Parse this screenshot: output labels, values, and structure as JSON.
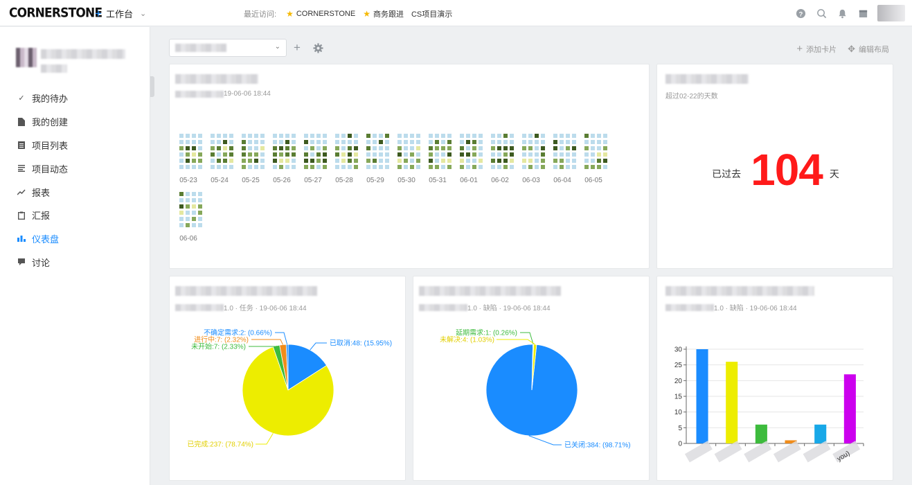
{
  "app": {
    "logo": "CORNERSTONE",
    "workspace_label": "工作台",
    "recent_label": "最近访问:",
    "recent": [
      "CORNERSTONE",
      "商务跟进",
      "CS项目演示"
    ]
  },
  "topbar_icons": [
    "help-icon",
    "search-icon",
    "bell-icon",
    "calendar-icon"
  ],
  "sidebar": {
    "items": [
      {
        "label": "我的待办",
        "icon": "check-double-icon",
        "active": false
      },
      {
        "label": "我的创建",
        "icon": "document-icon",
        "active": false
      },
      {
        "label": "项目列表",
        "icon": "list-icon",
        "active": false
      },
      {
        "label": "项目动态",
        "icon": "feed-icon",
        "active": false
      },
      {
        "label": "报表",
        "icon": "trend-icon",
        "active": false
      },
      {
        "label": "汇报",
        "icon": "clipboard-icon",
        "active": false
      },
      {
        "label": "仪表盘",
        "icon": "bars-icon",
        "active": true
      },
      {
        "label": "讨论",
        "icon": "chat-icon",
        "active": false
      }
    ]
  },
  "toolbar": {
    "add_card": "添加卡片",
    "edit_layout": "编辑布局"
  },
  "cards": {
    "heatmap": {
      "subtitle": "19-06-06 18:44"
    },
    "counter": {
      "subtitle": "超过02-22的天数",
      "prefix": "已过去",
      "value": "104",
      "suffix": "天"
    },
    "task_pie": {
      "subtitle": "1.0 · 任务 · 19-06-06 18:44"
    },
    "bug_pie": {
      "subtitle": "1.0 · 缺陷 · 19-06-06 18:44"
    },
    "bug_bar": {
      "subtitle": "1.0 · 缺陷 · 19-06-06 18:44"
    }
  },
  "chart_data": [
    {
      "type": "heatmap",
      "categories": [
        "05-23",
        "05-24",
        "05-25",
        "05-26",
        "05-27",
        "05-28",
        "05-29",
        "05-30",
        "05-31",
        "06-01",
        "06-02",
        "06-03",
        "06-04",
        "06-05",
        "06-06"
      ],
      "levels": [
        "000000000000000000000000000000000000",
        "000000000000000000000000000000000000",
        "000000000000000000000000000000000000",
        "000000000000000000000000000000000000",
        "000000000000000000000000000000000000",
        "000000000000000000000000000000000000",
        "000000000000000000000000000000000000",
        "000000000000000000000000000000000000",
        "000000000000000000000000000000000000",
        "000000000000000000000000000000000000",
        "000000000000000000000000000000000000",
        "000000000000000000000000000000000000",
        "000000000000000000000000000000000000",
        "000000000000000000000000000000000000",
        "000000000000000000000000000000000000"
      ]
    },
    {
      "type": "pie",
      "slices": [
        {
          "label": "已取消:48: (15.95%)",
          "value": 15.95,
          "color": "#1a8cff"
        },
        {
          "label": "已完成:237: (78.74%)",
          "value": 78.74,
          "color": "#eded00"
        },
        {
          "label": "未开始:7: (2.33%)",
          "value": 2.33,
          "color": "#3dbb3d"
        },
        {
          "label": "进行中:7: (2.32%)",
          "value": 2.32,
          "color": "#f08c1a"
        },
        {
          "label": "不确定需求:2: (0.66%)",
          "value": 0.66,
          "color": "#1a8cff"
        }
      ]
    },
    {
      "type": "pie",
      "slices": [
        {
          "label": "已关闭:384: (98.71%)",
          "value": 98.71,
          "color": "#1a8cff"
        },
        {
          "label": "延期需求:1: (0.26%)",
          "value": 0.26,
          "color": "#3dbb3d"
        },
        {
          "label": "未解决:4: (1.03%)",
          "value": 1.03,
          "color": "#eded00"
        }
      ]
    },
    {
      "type": "bar",
      "values": [
        30,
        26,
        6,
        1,
        6,
        22
      ],
      "colors": [
        "#1a8cff",
        "#eded00",
        "#3dbb3d",
        "#f08c1a",
        "#18a8e8",
        "#cc00ee"
      ],
      "ylim": [
        0,
        30
      ],
      "yticks": [
        0,
        5,
        10,
        15,
        20,
        25,
        30
      ],
      "tick_label_partial": "you)"
    }
  ]
}
